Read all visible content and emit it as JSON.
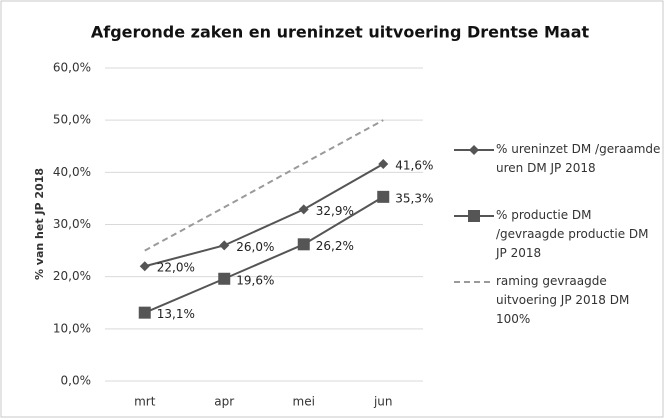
{
  "chart_data": {
    "type": "line",
    "title": "Afgeronde zaken en ureninzet uitvoering Drentse Maat",
    "y_label": "% van het JP 2018",
    "categories": [
      "mrt",
      "apr",
      "mei",
      "jun"
    ],
    "series": [
      {
        "name": "% ureninzet DM /geraamde uren DM JP 2018",
        "color": "#555555",
        "marker": "diamond",
        "dash": false,
        "values": [
          22.0,
          26.0,
          32.9,
          41.6
        ],
        "value_labels": [
          "22,0%",
          "26,0%",
          "32,9%",
          "41,6%"
        ]
      },
      {
        "name": "% productie DM /gevraagde productie DM JP 2018",
        "color": "#555555",
        "marker": "square",
        "dash": false,
        "values": [
          13.1,
          19.6,
          26.2,
          35.3
        ],
        "value_labels": [
          "13,1%",
          "19,6%",
          "26,2%",
          "35,3%"
        ]
      },
      {
        "name": "raming gevraagde uitvoering JP 2018 DM 100%",
        "color": "#9a9a9a",
        "marker": "none",
        "dash": true,
        "values": [
          25.0,
          33.3,
          41.7,
          50.0
        ]
      }
    ],
    "ylim": [
      0,
      60
    ],
    "yticks": [
      {
        "value": 0,
        "label": "0,0%"
      },
      {
        "value": 10,
        "label": "10,0%"
      },
      {
        "value": 20,
        "label": "20,0%"
      },
      {
        "value": 30,
        "label": "30,0%"
      },
      {
        "value": 40,
        "label": "40,0%"
      },
      {
        "value": 50,
        "label": "50,0%"
      },
      {
        "value": 60,
        "label": "60,0%"
      }
    ],
    "grid": true,
    "legend": "right"
  }
}
